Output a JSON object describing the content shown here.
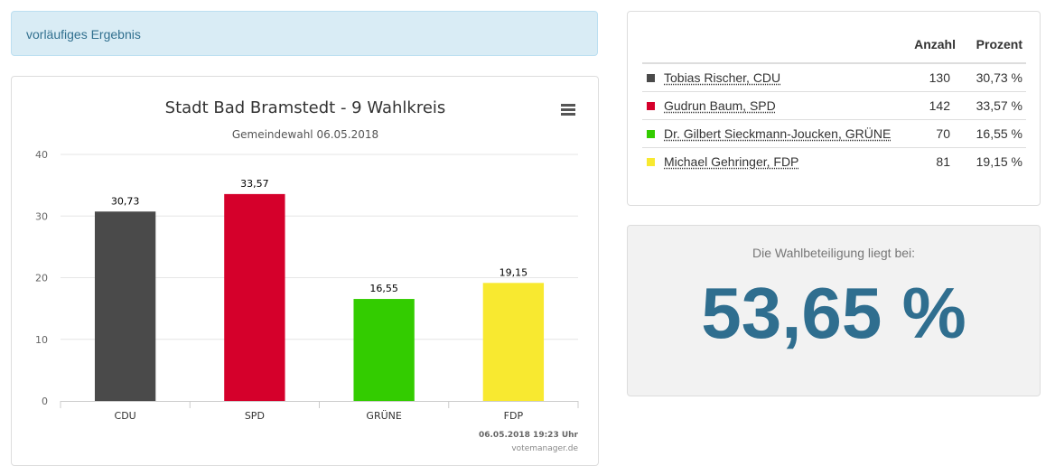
{
  "notice": {
    "text": "vorläufiges Ergebnis"
  },
  "results": {
    "headers": {
      "count": "Anzahl",
      "percent": "Prozent"
    },
    "rows": [
      {
        "name": "Tobias Rischer, CDU",
        "count": "130",
        "percent": "30,73 %",
        "color": "#4a4a4a"
      },
      {
        "name": "Gudrun Baum, SPD",
        "count": "142",
        "percent": "33,57 %",
        "color": "#d5002b"
      },
      {
        "name": "Dr. Gilbert Sieckmann-Joucken, GRÜNE",
        "count": "70",
        "percent": "16,55 %",
        "color": "#33cc00"
      },
      {
        "name": "Michael Gehringer, FDP",
        "count": "81",
        "percent": "19,15 %",
        "color": "#f8e930"
      }
    ]
  },
  "turnout": {
    "label": "Die Wahlbeteiligung liegt bei:",
    "value": "53,65 %"
  },
  "chart_data": {
    "type": "bar",
    "title": "Stadt Bad Bramstedt - 9 Wahlkreis",
    "subtitle": "Gemeindewahl 06.05.2018",
    "categories": [
      "CDU",
      "SPD",
      "GRÜNE",
      "FDP"
    ],
    "values": [
      30.73,
      33.57,
      16.55,
      19.15
    ],
    "data_labels": [
      "30,73",
      "33,57",
      "16,55",
      "19,15"
    ],
    "colors": [
      "#4a4a4a",
      "#d5002b",
      "#33cc00",
      "#f8e930"
    ],
    "ylim": [
      0,
      40
    ],
    "yticks": [
      0,
      10,
      20,
      30,
      40
    ],
    "grid": true,
    "legend": "none",
    "xlabel": "",
    "ylabel": "",
    "footer_timestamp": "06.05.2018 19:23 Uhr",
    "footer_credit": "votemanager.de"
  }
}
